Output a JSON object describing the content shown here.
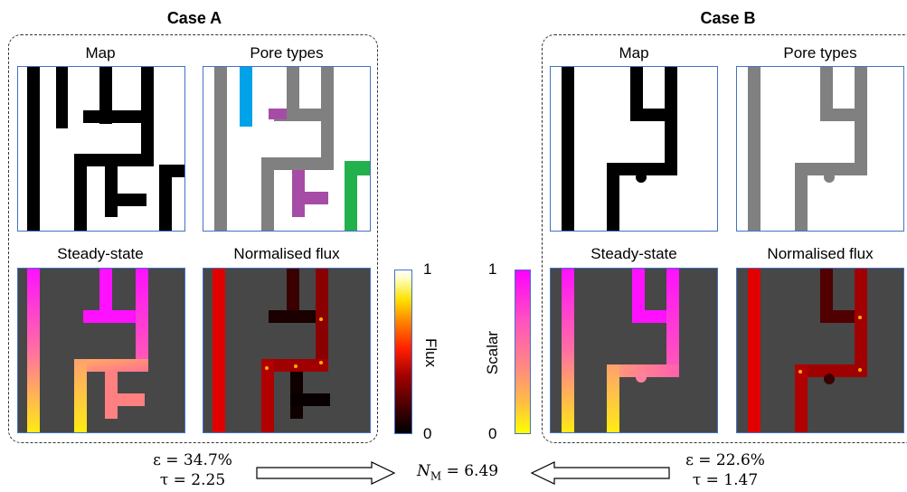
{
  "case_a": {
    "title": "Case A",
    "panels": {
      "map": "Map",
      "pore_types": "Pore types",
      "steady_state": "Steady-state",
      "normalised_flux": "Normalised flux"
    },
    "stats": {
      "epsilon": "ε = 34.7%",
      "tau": "τ = 2.25"
    }
  },
  "case_b": {
    "title": "Case B",
    "panels": {
      "map": "Map",
      "pore_types": "Pore types",
      "steady_state": "Steady-state",
      "normalised_flux": "Normalised flux"
    },
    "stats": {
      "epsilon": "ε = 22.6%",
      "tau": "τ = 1.47"
    }
  },
  "colorbar_flux": {
    "label": "Flux",
    "max": "1",
    "min": "0"
  },
  "colorbar_scalar": {
    "label": "Scalar",
    "max": "1",
    "min": "0"
  },
  "center": {
    "nm": "N_M = 6.49",
    "nm_symbol": "N",
    "nm_sub": "M",
    "nm_value": " = 6.49"
  },
  "colors": {
    "wall": "#000000",
    "pore_white": "#ffffff",
    "grey_pore": "#808080",
    "blue_pore": "#00a2e8",
    "purple_pore": "#a64ca6",
    "green_pore": "#22b14c",
    "dark_bg": "#474747",
    "panel_border": "#4472c4"
  }
}
